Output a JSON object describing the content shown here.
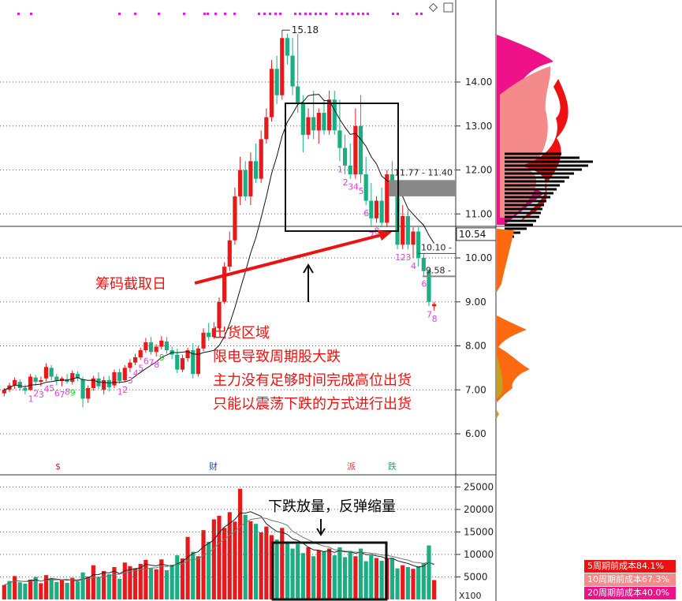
{
  "chart_data": [
    {
      "type": "candlestick",
      "ylim": [
        5.6,
        15.5
      ],
      "price_ticks": [
        6.0,
        7.0,
        8.0,
        9.0,
        10.0,
        11.0,
        12.0,
        13.0,
        14.0
      ],
      "price_tick_labels": [
        "6.00",
        "7.00",
        "8.00",
        "9.00",
        "10.00",
        "11.00",
        "12.00",
        "13.00",
        "14.00"
      ],
      "high_label": "15.18",
      "price_tags": [
        {
          "value": 10.54,
          "label": "10.54"
        },
        {
          "value": 10.1,
          "label": "10.10 -"
        },
        {
          "value": 9.58,
          "label": "9.58 -"
        },
        {
          "value": 11.6,
          "label": "11.77 - 11.40"
        }
      ],
      "event_markers": [
        "$",
        "财",
        "派",
        "跌"
      ],
      "candles_ohlc": [
        [
          6.92,
          7.04,
          6.85,
          7.0
        ],
        [
          7.0,
          7.16,
          6.95,
          7.1
        ],
        [
          7.1,
          7.28,
          7.02,
          7.22
        ],
        [
          7.18,
          7.24,
          6.98,
          7.04
        ],
        [
          7.04,
          7.12,
          6.9,
          6.98
        ],
        [
          7.0,
          7.36,
          6.98,
          7.3
        ],
        [
          7.28,
          7.34,
          7.1,
          7.18
        ],
        [
          7.18,
          7.3,
          7.08,
          7.22
        ],
        [
          7.26,
          7.6,
          7.2,
          7.52
        ],
        [
          7.5,
          7.56,
          7.22,
          7.3
        ],
        [
          7.3,
          7.36,
          7.1,
          7.2
        ],
        [
          7.2,
          7.3,
          7.08,
          7.26
        ],
        [
          7.24,
          7.36,
          7.14,
          7.18
        ],
        [
          7.18,
          7.44,
          7.12,
          7.38
        ],
        [
          7.36,
          7.42,
          7.2,
          7.26
        ],
        [
          7.24,
          7.3,
          6.6,
          6.8
        ],
        [
          6.8,
          7.1,
          6.7,
          7.04
        ],
        [
          7.04,
          7.32,
          6.98,
          7.26
        ],
        [
          7.26,
          7.4,
          7.02,
          7.08
        ],
        [
          7.0,
          7.3,
          6.9,
          7.22
        ],
        [
          7.22,
          7.32,
          6.96,
          7.06
        ],
        [
          7.1,
          7.46,
          7.04,
          7.4
        ],
        [
          7.4,
          7.48,
          7.14,
          7.2
        ],
        [
          7.22,
          7.56,
          7.18,
          7.5
        ],
        [
          7.5,
          7.7,
          7.4,
          7.62
        ],
        [
          7.62,
          7.82,
          7.56,
          7.74
        ],
        [
          7.74,
          7.96,
          7.68,
          7.9
        ],
        [
          7.9,
          8.18,
          7.84,
          8.08
        ],
        [
          8.08,
          8.2,
          7.8,
          7.86
        ],
        [
          7.86,
          8.04,
          7.76,
          7.98
        ],
        [
          7.98,
          8.22,
          7.92,
          8.12
        ],
        [
          8.1,
          8.2,
          7.82,
          7.9
        ],
        [
          7.9,
          7.98,
          7.7,
          7.8
        ],
        [
          7.8,
          7.94,
          7.38,
          7.46
        ],
        [
          7.46,
          7.8,
          7.4,
          7.72
        ],
        [
          7.72,
          7.96,
          7.64,
          7.9
        ],
        [
          7.9,
          8.06,
          7.26,
          7.36
        ],
        [
          7.36,
          8.0,
          7.3,
          7.94
        ],
        [
          7.94,
          8.4,
          7.88,
          8.3
        ],
        [
          8.3,
          8.52,
          8.12,
          8.2
        ],
        [
          8.2,
          8.54,
          8.16,
          8.4
        ],
        [
          8.4,
          9.1,
          8.36,
          9.0
        ],
        [
          9.0,
          9.9,
          8.96,
          9.8
        ],
        [
          9.8,
          10.6,
          9.7,
          10.4
        ],
        [
          10.4,
          11.6,
          10.3,
          11.4
        ],
        [
          11.4,
          12.3,
          11.2,
          12.0
        ],
        [
          12.0,
          12.2,
          11.3,
          11.4
        ],
        [
          11.4,
          12.4,
          11.2,
          12.2
        ],
        [
          12.2,
          12.6,
          11.7,
          11.8
        ],
        [
          11.8,
          12.9,
          11.7,
          12.7
        ],
        [
          12.7,
          13.4,
          12.6,
          13.2
        ],
        [
          13.2,
          14.5,
          13.1,
          14.3
        ],
        [
          14.3,
          14.6,
          13.5,
          13.7
        ],
        [
          13.7,
          15.18,
          13.6,
          15.0
        ],
        [
          15.0,
          15.1,
          14.4,
          14.6
        ],
        [
          14.6,
          15.0,
          13.7,
          13.9
        ],
        [
          13.9,
          15.1,
          13.3,
          13.5
        ],
        [
          13.5,
          13.7,
          12.4,
          12.8
        ],
        [
          12.8,
          13.4,
          12.7,
          13.2
        ],
        [
          13.2,
          13.8,
          12.7,
          12.9
        ],
        [
          12.9,
          13.4,
          12.6,
          13.3
        ],
        [
          13.3,
          13.6,
          12.8,
          12.9
        ],
        [
          12.9,
          13.8,
          12.8,
          13.6
        ],
        [
          13.6,
          13.8,
          12.8,
          12.9
        ],
        [
          12.9,
          13.6,
          12.2,
          12.5
        ],
        [
          12.5,
          12.8,
          11.9,
          12.1
        ],
        [
          12.1,
          12.6,
          11.8,
          11.9
        ],
        [
          11.9,
          13.4,
          11.8,
          13.0
        ],
        [
          13.0,
          13.7,
          11.7,
          11.9
        ],
        [
          11.9,
          12.3,
          11.2,
          11.3
        ],
        [
          11.3,
          11.7,
          10.7,
          10.9
        ],
        [
          10.9,
          11.4,
          10.8,
          11.3
        ],
        [
          11.3,
          11.6,
          10.7,
          10.8
        ],
        [
          10.8,
          12.0,
          10.7,
          11.9
        ],
        [
          11.9,
          12.2,
          11.5,
          11.6
        ],
        [
          11.6,
          11.7,
          10.2,
          10.3
        ],
        [
          10.3,
          11.2,
          10.2,
          10.95
        ],
        [
          10.95,
          11.1,
          10.2,
          10.3
        ],
        [
          10.3,
          10.7,
          10.0,
          10.6
        ],
        [
          10.6,
          10.7,
          9.8,
          10.0
        ],
        [
          10.0,
          10.1,
          9.6,
          9.7
        ],
        [
          9.7,
          9.75,
          8.9,
          9.0
        ],
        [
          8.9,
          9.0,
          8.8,
          8.95
        ]
      ],
      "candle_marks": [
        {
          "i": 5,
          "t": "1",
          "c": "#d4d"
        },
        {
          "i": 6,
          "t": "2",
          "c": "#d4d"
        },
        {
          "i": 7,
          "t": "3",
          "c": "#d4d"
        },
        {
          "i": 8,
          "t": "4",
          "c": "#d4d"
        },
        {
          "i": 9,
          "t": "5",
          "c": "#d4d"
        },
        {
          "i": 10,
          "t": "6",
          "c": "#d4d"
        },
        {
          "i": 11,
          "t": "7",
          "c": "#d4d"
        },
        {
          "i": 12,
          "t": "8",
          "c": "#d4d"
        },
        {
          "i": 13,
          "t": "9",
          "c": "#2c2"
        },
        {
          "i": 22,
          "t": "1",
          "c": "#d4d"
        },
        {
          "i": 23,
          "t": "2",
          "c": "#d4d"
        },
        {
          "i": 24,
          "t": "3",
          "c": "#d4d"
        },
        {
          "i": 25,
          "t": "4",
          "c": "#d4d"
        },
        {
          "i": 26,
          "t": "5",
          "c": "#d4d"
        },
        {
          "i": 27,
          "t": "6",
          "c": "#d4d"
        },
        {
          "i": 28,
          "t": "7",
          "c": "#d4d"
        },
        {
          "i": 29,
          "t": "8",
          "c": "#d4d"
        },
        {
          "i": 30,
          "t": "9",
          "c": "#2c2"
        },
        {
          "i": 64,
          "t": "1",
          "c": "#d4d"
        },
        {
          "i": 65,
          "t": "2",
          "c": "#d4d"
        },
        {
          "i": 66,
          "t": "3",
          "c": "#d4d"
        },
        {
          "i": 67,
          "t": "4",
          "c": "#d4d"
        },
        {
          "i": 68,
          "t": "5",
          "c": "#d4d"
        },
        {
          "i": 69,
          "t": "6",
          "c": "#d4d"
        },
        {
          "i": 70,
          "t": "7",
          "c": "#d4d"
        },
        {
          "i": 71,
          "t": "8",
          "c": "#d4d"
        },
        {
          "i": 72,
          "t": "9",
          "c": "#2c2"
        },
        {
          "i": 75,
          "t": "1",
          "c": "#d4d"
        },
        {
          "i": 76,
          "t": "2",
          "c": "#d4d"
        },
        {
          "i": 77,
          "t": "3",
          "c": "#d4d"
        },
        {
          "i": 78,
          "t": "4",
          "c": "#d4d"
        },
        {
          "i": 80,
          "t": "6",
          "c": "#d4d"
        },
        {
          "i": 81,
          "t": "7",
          "c": "#d4d"
        },
        {
          "i": 82,
          "t": "8",
          "c": "#d4d"
        }
      ]
    },
    {
      "type": "bar",
      "name": "volume",
      "unit_label": "X100",
      "ylim": [
        0,
        27000
      ],
      "y_ticks": [
        5000,
        10000,
        15000,
        20000,
        25000
      ],
      "y_tick_labels": [
        "5000",
        "10000",
        "15000",
        "20000",
        "25000"
      ],
      "values": [
        3200,
        4100,
        5200,
        3800,
        3500,
        4400,
        5000,
        3600,
        5400,
        4700,
        3900,
        4300,
        3700,
        4800,
        4000,
        6000,
        5100,
        7600,
        4900,
        6300,
        5600,
        7200,
        4600,
        8200,
        7400,
        6900,
        7900,
        8800,
        7000,
        6700,
        8900,
        6500,
        7700,
        9800,
        9100,
        13900,
        10600,
        9600,
        15400,
        12800,
        17800,
        18600,
        15900,
        19400,
        17300,
        24600,
        18800,
        17400,
        16800,
        14900,
        16200,
        14300,
        13300,
        15900,
        12600,
        11300,
        12300,
        10300,
        11600,
        9600,
        10900,
        10700,
        11300,
        9800,
        11600,
        9400,
        10800,
        9600,
        11300,
        8500,
        9800,
        9200,
        8600,
        9100,
        9200,
        6900,
        7600,
        7200,
        6800,
        7400,
        8100,
        12000,
        4300
      ],
      "bar_colors": [
        "up",
        "down",
        "up",
        "down",
        "down",
        "up",
        "down",
        "up",
        "up",
        "down",
        "down",
        "up",
        "down",
        "up",
        "down",
        "down",
        "up",
        "up",
        "down",
        "up",
        "down",
        "up",
        "down",
        "up",
        "up",
        "up",
        "up",
        "up",
        "down",
        "up",
        "up",
        "down",
        "down",
        "down",
        "up",
        "up",
        "down",
        "up",
        "up",
        "down",
        "up",
        "up",
        "up",
        "up",
        "up",
        "up",
        "down",
        "up",
        "down",
        "up",
        "up",
        "up",
        "down",
        "up",
        "down",
        "down",
        "down",
        "down",
        "up",
        "down",
        "up",
        "down",
        "up",
        "down",
        "down",
        "down",
        "down",
        "up",
        "down",
        "down",
        "down",
        "up",
        "down",
        "up",
        "down",
        "down",
        "up",
        "down",
        "up",
        "down",
        "down",
        "down",
        "up"
      ]
    }
  ],
  "annotations": {
    "chips_label": "筹码截取日",
    "text_lines": [
      "出货区域",
      "限电导致周期股大跌",
      "主力没有足够时间完成高位出货",
      "只能以震荡下跌的方式进行出货"
    ],
    "volume_label": "下跌放量，反弹缩量"
  },
  "cost_legend": [
    {
      "label": "5周期前成本84.1%",
      "color": "#ee1111"
    },
    {
      "label": "10周期前成本67.3%",
      "color": "#f48a8a"
    },
    {
      "label": "20周期前成本40.0%",
      "color": "#ee1188"
    }
  ],
  "colors": {
    "up": "#e8191b",
    "down": "#1aaf82",
    "annotation": "#ee1111"
  }
}
